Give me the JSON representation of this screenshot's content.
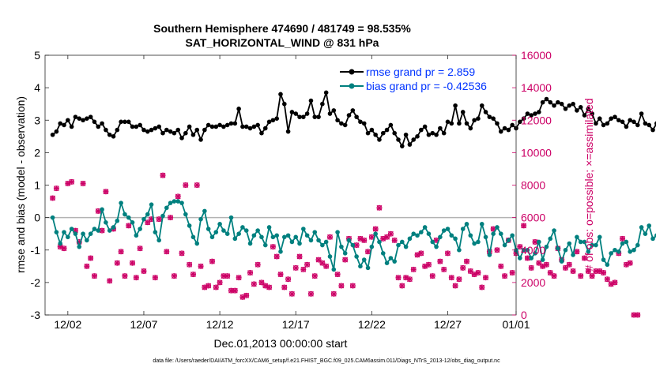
{
  "chart_data": {
    "type": "line",
    "title": "Southern Hemisphere 474690 / 481749 = 98.535%",
    "subtitle": "SAT_HORIZONTAL_WIND @ 831 hPa",
    "xlabel": "Dec.01,2013 00:00:00 start",
    "ylabel_left": "rmse and bias (model - observation)",
    "ylabel_right": "# of obs: o=possible; ×=assimilated",
    "footer": "data file: /Users/raeder/DAI/ATM_forcXX/CAM6_setup/f.e21.FHIST_BGC.f09_025.CAM6assim.011/Diags_NTrS_2013-12/obs_diag_output.nc",
    "xlim": [
      0.5,
      31.5
    ],
    "ylim_left": [
      -3,
      5
    ],
    "ylim_right": [
      0,
      16000
    ],
    "x_tick_labels": [
      {
        "x": 2,
        "label": "12/02"
      },
      {
        "x": 7,
        "label": "12/07"
      },
      {
        "x": 12,
        "label": "12/12"
      },
      {
        "x": 17,
        "label": "12/17"
      },
      {
        "x": 22,
        "label": "12/22"
      },
      {
        "x": 27,
        "label": "12/27"
      },
      {
        "x": 32,
        "label": "01/01"
      }
    ],
    "y_left_ticks": [
      -3,
      -2,
      -1,
      0,
      1,
      2,
      3,
      4,
      5
    ],
    "y_right_ticks": [
      0,
      2000,
      4000,
      6000,
      8000,
      10000,
      12000,
      14000,
      16000
    ],
    "x_step_days": 0.25,
    "x_start": 1.0,
    "series": [
      {
        "name": "rmse grand pr = 2.859",
        "color": "#000000",
        "axis": "left",
        "values": [
          2.55,
          2.65,
          2.9,
          2.85,
          3.0,
          2.8,
          3.1,
          3.05,
          3.0,
          3.05,
          3.1,
          2.95,
          2.8,
          2.9,
          2.7,
          2.55,
          2.5,
          2.7,
          2.95,
          2.95,
          2.95,
          2.8,
          2.8,
          2.85,
          2.7,
          2.65,
          2.7,
          2.75,
          2.8,
          2.6,
          2.7,
          2.65,
          2.6,
          2.7,
          2.45,
          2.6,
          2.8,
          2.55,
          2.7,
          2.4,
          2.7,
          2.85,
          2.8,
          2.8,
          2.85,
          2.8,
          2.85,
          2.9,
          2.9,
          3.35,
          2.8,
          2.8,
          2.75,
          2.8,
          2.85,
          2.6,
          2.75,
          2.95,
          3.0,
          3.05,
          3.8,
          3.5,
          2.65,
          3.25,
          3.2,
          3.1,
          3.1,
          3.2,
          3.6,
          3.1,
          3.1,
          3.5,
          3.85,
          3.2,
          3.3,
          3.0,
          2.9,
          2.85,
          3.15,
          3.3,
          3.1,
          2.95,
          2.9,
          2.6,
          2.7,
          2.55,
          2.4,
          2.6,
          2.7,
          2.85,
          2.6,
          2.4,
          2.2,
          2.55,
          2.25,
          2.4,
          2.5,
          2.7,
          2.8,
          2.55,
          2.6,
          2.55,
          2.75,
          2.6,
          2.95,
          2.9,
          3.45,
          2.9,
          3.25,
          2.9,
          2.75,
          3.0,
          3.05,
          3.45,
          3.25,
          3.1,
          3.05,
          2.9,
          2.65,
          2.75,
          2.7,
          2.85,
          2.75,
          2.95,
          3.05,
          3.2,
          3.15,
          3.2,
          3.25,
          3.55,
          3.65,
          3.55,
          3.45,
          3.55,
          3.5,
          3.35,
          3.45,
          3.5,
          3.3,
          3.4,
          3.15,
          3.35,
          3.2,
          2.9,
          3.05,
          2.85,
          2.9,
          3.05,
          3.1,
          3.0,
          2.95,
          2.8,
          3.0,
          2.95,
          2.85,
          3.2,
          2.9,
          2.85,
          2.7,
          2.9,
          2.95,
          3.1,
          3.05,
          3.3,
          3.2,
          3.1,
          3.0
        ]
      },
      {
        "name": "bias grand pr = -0.42536",
        "color": "#00807f",
        "axis": "left",
        "values": [
          0.0,
          -0.45,
          -0.8,
          -0.45,
          -0.6,
          -0.35,
          -0.5,
          -0.9,
          -0.5,
          -0.7,
          -0.5,
          -0.35,
          -0.4,
          0.25,
          -0.15,
          -0.4,
          -0.3,
          -0.1,
          0.45,
          0.1,
          0.0,
          -0.15,
          -0.55,
          -0.35,
          -0.05,
          0.1,
          0.4,
          -0.45,
          -0.7,
          0.05,
          0.3,
          0.45,
          0.5,
          0.5,
          0.45,
          0.1,
          -0.25,
          -0.6,
          -0.8,
          -0.05,
          0.2,
          -0.35,
          -0.6,
          -0.45,
          -0.2,
          -0.4,
          -0.5,
          0.0,
          -0.65,
          -0.5,
          -0.3,
          -0.4,
          -0.8,
          -0.55,
          -0.4,
          -0.6,
          -0.85,
          -0.3,
          -0.6,
          -0.55,
          -1.05,
          -0.6,
          -0.55,
          -0.75,
          -0.6,
          -0.8,
          -0.35,
          -0.55,
          -0.7,
          -0.45,
          -0.7,
          -0.85,
          -0.75,
          -1.2,
          -1.6,
          -0.45,
          -0.9,
          -1.1,
          -0.7,
          -0.85,
          -1.2,
          -1.5,
          -1.3,
          -1.55,
          -0.9,
          -0.5,
          -0.75,
          -1.1,
          -1.4,
          -1.25,
          -1.35,
          -0.85,
          -0.75,
          -0.9,
          -0.65,
          -0.5,
          -0.55,
          -0.45,
          -0.3,
          -0.5,
          -0.75,
          -0.9,
          -0.6,
          -0.4,
          -0.35,
          -0.55,
          -0.65,
          -1.0,
          -0.35,
          -0.2,
          -0.55,
          -0.8,
          -0.75,
          -0.2,
          -0.6,
          -1.15,
          -0.5,
          -0.3,
          -0.5,
          -0.85,
          -0.7,
          -0.55,
          -1.0,
          -1.25,
          -1.0,
          -1.0,
          -1.25,
          -1.1,
          -0.75,
          -1.3,
          -0.9,
          -0.65,
          -0.4,
          -0.95,
          -1.35,
          -1.0,
          -0.8,
          -1.15,
          -0.6,
          -0.75,
          -0.75,
          -1.05,
          -0.85,
          -0.85,
          -0.6,
          -1.3,
          -1.45,
          -1.1,
          -1.0,
          -1.05,
          -0.8,
          -0.75,
          -1.05,
          -1.0,
          -0.85,
          -0.3,
          -0.5,
          -0.25,
          -0.65,
          -0.55,
          -0.45,
          -0.8,
          -0.55,
          -0.25,
          -0.6,
          -0.85
        ]
      }
    ],
    "obs_possible": {
      "name": "possible",
      "color": "#cc0066",
      "axis": "right",
      "values": [
        7200,
        7800,
        4200,
        4100,
        8100,
        8200,
        5200,
        4500,
        8100,
        3000,
        3500,
        2400,
        6400,
        5200,
        7600,
        2100,
        5300,
        3200,
        3900,
        2400,
        5500,
        3200,
        2300,
        4100,
        2700,
        5700,
        5900,
        2300,
        5900,
        8600,
        3900,
        6000,
        2400,
        7300,
        3800,
        8000,
        3100,
        2500,
        8000,
        3000,
        1700,
        1800,
        3300,
        1700,
        2000,
        2400,
        2400,
        1500,
        1500,
        2300,
        1100,
        1200,
        2600,
        1900,
        3100,
        2000,
        1800,
        1700,
        4200,
        3600,
        2500,
        1700,
        2200,
        1300,
        2900,
        3600,
        2800,
        3100,
        1300,
        2400,
        3400,
        3200,
        3000,
        4800,
        1300,
        2500,
        1800,
        3400,
        4700,
        1800,
        4300,
        4700,
        4600,
        3900,
        4800,
        5300,
        6600,
        4700,
        4800,
        5000,
        4600,
        2300,
        1800,
        2300,
        2200,
        2800,
        3700,
        3800,
        3000,
        3100,
        2400,
        4600,
        3300,
        2800,
        3800,
        2300,
        1800,
        2200,
        2900,
        3300,
        2700,
        2500,
        2600,
        1700,
        2300,
        3900,
        5300,
        4000,
        3000,
        2400,
        4600,
        2600,
        3800,
        4200,
        5500,
        3500,
        2900,
        4500,
        3200,
        3000,
        3100,
        2600,
        2400,
        4100,
        3400,
        2900,
        3100,
        2700,
        3900,
        2400,
        3500,
        2700,
        2400,
        2700,
        2700,
        2600,
        2200,
        1900,
        2000,
        3800,
        4700,
        3100,
        3200,
        0,
        0
      ]
    },
    "obs_assimilated": {
      "name": "assimilated",
      "color": "#cc0066",
      "axis": "right",
      "marker": "×",
      "values": [
        7200,
        7800,
        4200,
        4100,
        8100,
        8200,
        5200,
        4500,
        8100,
        3000,
        3500,
        2400,
        6400,
        5200,
        7600,
        2100,
        5300,
        3200,
        3900,
        2400,
        5500,
        3200,
        2300,
        4100,
        2700,
        5700,
        5900,
        2300,
        5900,
        8600,
        3900,
        6000,
        2400,
        7300,
        3800,
        8000,
        3100,
        2500,
        8000,
        3000,
        1700,
        1800,
        3300,
        1700,
        2000,
        2400,
        2400,
        1500,
        1500,
        2300,
        1100,
        1200,
        2600,
        1900,
        3100,
        2000,
        1800,
        1700,
        4200,
        3600,
        2500,
        1700,
        2200,
        1300,
        2900,
        3600,
        2800,
        3100,
        1300,
        2400,
        3400,
        3200,
        3000,
        4800,
        1300,
        2500,
        1800,
        3400,
        4700,
        1800,
        4300,
        4700,
        4600,
        3900,
        4800,
        5300,
        6600,
        4700,
        4800,
        5000,
        4600,
        2300,
        1800,
        2300,
        2200,
        2800,
        3700,
        3800,
        3000,
        3100,
        2400,
        4600,
        3300,
        2800,
        3800,
        2300,
        1800,
        2200,
        2900,
        3300,
        2700,
        2500,
        2600,
        1700,
        2300,
        3900,
        5300,
        4000,
        3000,
        2400,
        4600,
        2600,
        3800,
        4200,
        5500,
        3500,
        2900,
        4500,
        3200,
        3000,
        3100,
        2600,
        2400,
        4100,
        3400,
        2900,
        3100,
        2700,
        3900,
        2400,
        3500,
        2700,
        2400,
        2700,
        2700,
        2600,
        2200,
        1900,
        2000,
        3800,
        4700,
        3100,
        3200,
        0,
        0
      ]
    },
    "zero_line": 0,
    "legend": {
      "location": "top-right",
      "entries": [
        "rmse grand pr = 2.859",
        "bias grand pr = -0.42536"
      ]
    },
    "legend_text_color": "#0033ff",
    "colors": {
      "left_axis": "#000000",
      "right_axis": "#cc0066",
      "zero_line": "#b3b3b3"
    }
  }
}
